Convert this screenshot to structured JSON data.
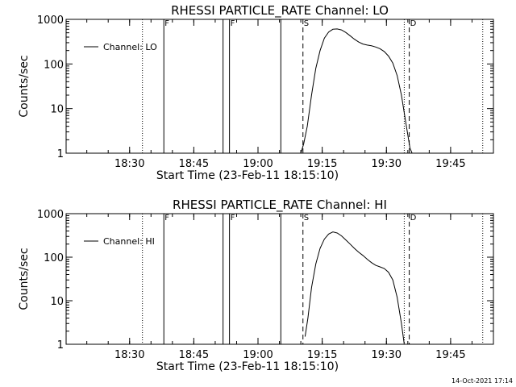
{
  "chart_data": [
    {
      "type": "line",
      "title": "RHESSI PARTICLE_RATE Channel: LO",
      "xlabel": "Start Time (23-Feb-11 18:15:10)",
      "ylabel": "Counts/sec",
      "yscale": "log",
      "ylim": [
        1,
        1000
      ],
      "xlim": [
        "18:15:10",
        "19:55:00"
      ],
      "x_ticks": [
        "18:30",
        "18:45",
        "19:00",
        "19:15",
        "19:30",
        "19:45"
      ],
      "y_ticks": [
        "1",
        "10",
        "100",
        "1000"
      ],
      "legend": [
        "Channel: LO"
      ],
      "legend_position": "top-left",
      "markers": [
        {
          "time": "18:33:00",
          "style": "dotted",
          "label": ""
        },
        {
          "time": "18:38:00",
          "style": "solid",
          "label": "F"
        },
        {
          "time": "18:51:50",
          "style": "solid",
          "label": ""
        },
        {
          "time": "18:53:20",
          "style": "solid",
          "label": "F"
        },
        {
          "time": "19:05:20",
          "style": "solid",
          "label": ""
        },
        {
          "time": "19:10:30",
          "style": "dashed",
          "label": "S"
        },
        {
          "time": "19:34:10",
          "style": "dotted",
          "label": ""
        },
        {
          "time": "19:35:20",
          "style": "dashed",
          "label": "D"
        },
        {
          "time": "19:52:30",
          "style": "dotted",
          "label": ""
        }
      ],
      "series": [
        {
          "name": "Channel: LO",
          "points": [
            [
              "19:10:00",
              1
            ],
            [
              "19:10:40",
              1.6
            ],
            [
              "19:11:30",
              4
            ],
            [
              "19:12:30",
              20
            ],
            [
              "19:13:30",
              80
            ],
            [
              "19:14:30",
              200
            ],
            [
              "19:15:30",
              380
            ],
            [
              "19:16:30",
              520
            ],
            [
              "19:17:30",
              600
            ],
            [
              "19:18:30",
              610
            ],
            [
              "19:19:30",
              580
            ],
            [
              "19:20:30",
              510
            ],
            [
              "19:21:30",
              430
            ],
            [
              "19:22:30",
              360
            ],
            [
              "19:23:30",
              310
            ],
            [
              "19:24:30",
              280
            ],
            [
              "19:25:30",
              265
            ],
            [
              "19:26:30",
              255
            ],
            [
              "19:27:30",
              240
            ],
            [
              "19:28:30",
              220
            ],
            [
              "19:29:30",
              190
            ],
            [
              "19:30:30",
              150
            ],
            [
              "19:31:30",
              105
            ],
            [
              "19:32:30",
              55
            ],
            [
              "19:33:30",
              20
            ],
            [
              "19:34:30",
              5
            ],
            [
              "19:35:30",
              1.3
            ],
            [
              "19:36:00",
              1
            ]
          ]
        }
      ]
    },
    {
      "type": "line",
      "title": "RHESSI PARTICLE_RATE Channel: HI",
      "xlabel": "Start Time (23-Feb-11 18:15:10)",
      "ylabel": "Counts/sec",
      "yscale": "log",
      "ylim": [
        1,
        1000
      ],
      "xlim": [
        "18:15:10",
        "19:55:00"
      ],
      "x_ticks": [
        "18:30",
        "18:45",
        "19:00",
        "19:15",
        "19:30",
        "19:45"
      ],
      "y_ticks": [
        "1",
        "10",
        "100",
        "1000"
      ],
      "legend": [
        "Channel: HI"
      ],
      "legend_position": "top-left",
      "markers": [
        {
          "time": "18:33:00",
          "style": "dotted",
          "label": ""
        },
        {
          "time": "18:38:00",
          "style": "solid",
          "label": "F"
        },
        {
          "time": "18:51:50",
          "style": "solid",
          "label": ""
        },
        {
          "time": "18:53:20",
          "style": "solid",
          "label": "F"
        },
        {
          "time": "19:05:20",
          "style": "solid",
          "label": ""
        },
        {
          "time": "19:10:30",
          "style": "dashed",
          "label": "S"
        },
        {
          "time": "19:34:10",
          "style": "dotted",
          "label": ""
        },
        {
          "time": "19:35:20",
          "style": "dashed",
          "label": "D"
        },
        {
          "time": "19:52:30",
          "style": "dotted",
          "label": ""
        }
      ],
      "series": [
        {
          "name": "Channel: HI",
          "points": [
            [
              "19:11:00",
              1.5
            ],
            [
              "19:11:40",
              4
            ],
            [
              "19:12:30",
              20
            ],
            [
              "19:13:30",
              70
            ],
            [
              "19:14:30",
              160
            ],
            [
              "19:15:30",
              260
            ],
            [
              "19:16:30",
              340
            ],
            [
              "19:17:30",
              380
            ],
            [
              "19:18:30",
              360
            ],
            [
              "19:19:30",
              310
            ],
            [
              "19:20:30",
              250
            ],
            [
              "19:21:30",
              200
            ],
            [
              "19:22:30",
              160
            ],
            [
              "19:23:30",
              130
            ],
            [
              "19:24:30",
              110
            ],
            [
              "19:25:30",
              90
            ],
            [
              "19:26:30",
              75
            ],
            [
              "19:27:30",
              65
            ],
            [
              "19:28:30",
              60
            ],
            [
              "19:29:30",
              55
            ],
            [
              "19:30:30",
              45
            ],
            [
              "19:31:30",
              30
            ],
            [
              "19:32:30",
              12
            ],
            [
              "19:33:30",
              3
            ],
            [
              "19:34:10",
              1
            ]
          ]
        }
      ]
    }
  ],
  "footer": {
    "timestamp": "14-Oct-2021 17:14"
  }
}
